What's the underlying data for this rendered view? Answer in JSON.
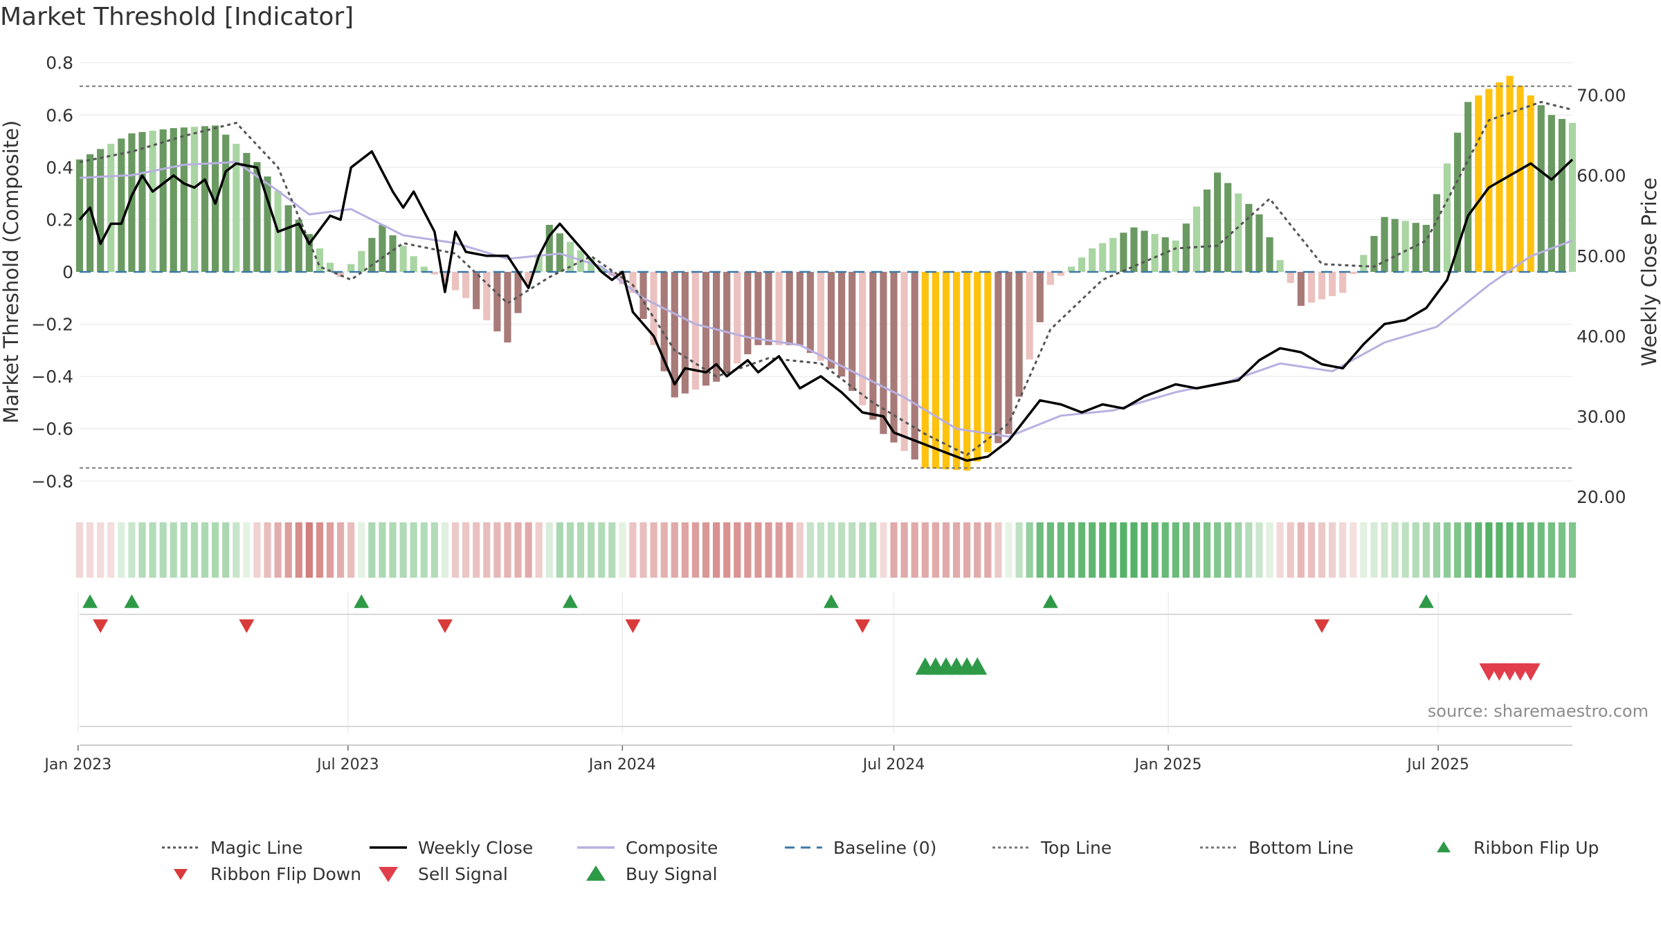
{
  "title": "Market Threshold [Indicator]",
  "source": "source: sharemaestro.com",
  "colors": {
    "bar_pos_strong": "#6a9a62",
    "bar_pos_weak": "#a9d5a2",
    "bar_neg_strong": "#a87a78",
    "bar_neg_weak": "#ebc2bf",
    "bar_extreme": "#ffc20e",
    "magic": "#555555",
    "close": "#000000",
    "composite": "#b8b0e0",
    "baseline": "#3a78a8",
    "threshold": "#777777",
    "up": "#2e9a48",
    "down": "#d93a3a"
  },
  "legend": [
    {
      "label": "Magic Line",
      "style": "dotted",
      "color": "#555555"
    },
    {
      "label": "Weekly Close",
      "style": "solid",
      "color": "#000000"
    },
    {
      "label": "Composite",
      "style": "solid",
      "color": "#b8b0e0"
    },
    {
      "label": "Baseline (0)",
      "style": "dashed",
      "color": "#3a78a8"
    },
    {
      "label": "Top Line",
      "style": "dotted",
      "color": "#777777"
    },
    {
      "label": "Bottom Line",
      "style": "dotted",
      "color": "#777777"
    },
    {
      "label": "Ribbon Flip Up",
      "style": "tri-up",
      "color": "#2e9a48"
    },
    {
      "label": "Ribbon Flip Down",
      "style": "tri-down",
      "color": "#d93a3a"
    },
    {
      "label": "Sell Signal",
      "style": "tri-down-big",
      "color": "#e23d4b"
    },
    {
      "label": "Buy Signal",
      "style": "tri-up-big",
      "color": "#2e9a48"
    }
  ],
  "chart_data": {
    "type": "bar",
    "xlabel": "",
    "ylabel": "Market Threshold (Composite)",
    "y2label": "Weekly Close Price",
    "x_start": "2023-01-02",
    "x_end": "2025-09-29",
    "x_ticks": [
      {
        "date": "2023-01-01",
        "label": "Jan 2023"
      },
      {
        "date": "2023-07-01",
        "label": "Jul 2023"
      },
      {
        "date": "2024-01-01",
        "label": "Jan 2024"
      },
      {
        "date": "2024-07-01",
        "label": "Jul 2024"
      },
      {
        "date": "2025-01-01",
        "label": "Jan 2025"
      },
      {
        "date": "2025-07-01",
        "label": "Jul 2025"
      }
    ],
    "y_ticks": [
      {
        "value": 0.8,
        "label": "0.8"
      },
      {
        "value": 0.6,
        "label": "0.6"
      },
      {
        "value": 0.4,
        "label": "0.4"
      },
      {
        "value": 0.2,
        "label": "0.2"
      },
      {
        "value": 0,
        "label": "0"
      },
      {
        "value": -0.2,
        "label": "−0.2"
      },
      {
        "value": -0.4,
        "label": "−0.4"
      },
      {
        "value": -0.6,
        "label": "−0.6"
      },
      {
        "value": -0.8,
        "label": "−0.8"
      }
    ],
    "y2_ticks": [
      {
        "value": 70,
        "label": "70.00"
      },
      {
        "value": 60,
        "label": "60.00"
      },
      {
        "value": 50,
        "label": "50.00"
      },
      {
        "value": 40,
        "label": "40.00"
      },
      {
        "value": 30,
        "label": "30.00"
      },
      {
        "value": 20,
        "label": "20.00"
      }
    ],
    "ylim": [
      -0.86,
      0.86
    ],
    "y2lim": [
      20,
      76
    ],
    "top_line": 0.71,
    "bottom_line": -0.75,
    "baseline": 0,
    "composite_anchors": [
      [
        "2023-01-02",
        0.43
      ],
      [
        "2023-02-06",
        0.53
      ],
      [
        "2023-03-06",
        0.55
      ],
      [
        "2023-04-03",
        0.56
      ],
      [
        "2023-05-01",
        0.42
      ],
      [
        "2023-05-29",
        0.2
      ],
      [
        "2023-06-26",
        -0.02
      ],
      [
        "2023-07-24",
        0.18
      ],
      [
        "2023-08-21",
        0.02
      ],
      [
        "2023-09-18",
        -0.1
      ],
      [
        "2023-10-16",
        -0.27
      ],
      [
        "2023-11-13",
        0.18
      ],
      [
        "2023-12-11",
        0.05
      ],
      [
        "2024-01-08",
        -0.08
      ],
      [
        "2024-02-05",
        -0.48
      ],
      [
        "2024-03-04",
        -0.42
      ],
      [
        "2024-04-01",
        -0.28
      ],
      [
        "2024-04-29",
        -0.28
      ],
      [
        "2024-05-27",
        -0.4
      ],
      [
        "2024-06-24",
        -0.62
      ],
      [
        "2024-07-22",
        -0.75
      ],
      [
        "2024-08-19",
        -0.76
      ],
      [
        "2024-09-16",
        -0.62
      ],
      [
        "2024-10-14",
        -0.05
      ],
      [
        "2024-11-11",
        0.09
      ],
      [
        "2024-12-09",
        0.17
      ],
      [
        "2025-01-06",
        0.12
      ],
      [
        "2025-02-03",
        0.38
      ],
      [
        "2025-03-03",
        0.22
      ],
      [
        "2025-03-31",
        -0.13
      ],
      [
        "2025-04-28",
        -0.08
      ],
      [
        "2025-05-26",
        0.21
      ],
      [
        "2025-06-23",
        0.18
      ],
      [
        "2025-07-21",
        0.65
      ],
      [
        "2025-08-18",
        0.75
      ],
      [
        "2025-09-15",
        0.6
      ],
      [
        "2025-09-29",
        0.57
      ]
    ],
    "weekly_close": [
      [
        "2023-01-02",
        54.5
      ],
      [
        "2023-01-09",
        56.0
      ],
      [
        "2023-01-16",
        51.5
      ],
      [
        "2023-01-23",
        54.0
      ],
      [
        "2023-01-30",
        54.0
      ],
      [
        "2023-02-06",
        57.5
      ],
      [
        "2023-02-13",
        60.0
      ],
      [
        "2023-02-20",
        58.0
      ],
      [
        "2023-02-27",
        59.0
      ],
      [
        "2023-03-06",
        60.0
      ],
      [
        "2023-03-13",
        59.0
      ],
      [
        "2023-03-20",
        58.5
      ],
      [
        "2023-03-27",
        59.5
      ],
      [
        "2023-04-03",
        56.5
      ],
      [
        "2023-04-10",
        60.5
      ],
      [
        "2023-04-17",
        61.5
      ],
      [
        "2023-05-01",
        61.0
      ],
      [
        "2023-05-15",
        53.0
      ],
      [
        "2023-05-29",
        54.0
      ],
      [
        "2023-06-05",
        51.5
      ],
      [
        "2023-06-19",
        55.0
      ],
      [
        "2023-06-26",
        54.5
      ],
      [
        "2023-07-03",
        61.0
      ],
      [
        "2023-07-17",
        63.0
      ],
      [
        "2023-07-31",
        58.0
      ],
      [
        "2023-08-07",
        56.0
      ],
      [
        "2023-08-14",
        58.0
      ],
      [
        "2023-08-28",
        53.0
      ],
      [
        "2023-09-04",
        45.5
      ],
      [
        "2023-09-11",
        53.0
      ],
      [
        "2023-09-18",
        50.5
      ],
      [
        "2023-10-02",
        50.0
      ],
      [
        "2023-10-16",
        50.0
      ],
      [
        "2023-10-30",
        46.0
      ],
      [
        "2023-11-06",
        50.0
      ],
      [
        "2023-11-13",
        52.5
      ],
      [
        "2023-11-20",
        54.0
      ],
      [
        "2023-11-27",
        52.5
      ],
      [
        "2023-12-04",
        51.0
      ],
      [
        "2023-12-18",
        48.0
      ],
      [
        "2023-12-25",
        47.0
      ],
      [
        "2024-01-01",
        48.0
      ],
      [
        "2024-01-08",
        43.0
      ],
      [
        "2024-01-22",
        40.0
      ],
      [
        "2024-02-05",
        34.0
      ],
      [
        "2024-02-12",
        36.0
      ],
      [
        "2024-02-26",
        35.5
      ],
      [
        "2024-03-04",
        36.5
      ],
      [
        "2024-03-11",
        35.0
      ],
      [
        "2024-03-25",
        37.0
      ],
      [
        "2024-04-01",
        35.5
      ],
      [
        "2024-04-15",
        37.5
      ],
      [
        "2024-04-29",
        33.5
      ],
      [
        "2024-05-13",
        35.0
      ],
      [
        "2024-05-27",
        33.0
      ],
      [
        "2024-06-10",
        30.5
      ],
      [
        "2024-06-24",
        30.0
      ],
      [
        "2024-07-01",
        28.0
      ],
      [
        "2024-07-15",
        27.0
      ],
      [
        "2024-08-05",
        25.5
      ],
      [
        "2024-08-19",
        24.5
      ],
      [
        "2024-09-02",
        25.0
      ],
      [
        "2024-09-16",
        27.0
      ],
      [
        "2024-10-07",
        32.0
      ],
      [
        "2024-10-21",
        31.5
      ],
      [
        "2024-11-04",
        30.5
      ],
      [
        "2024-11-18",
        31.5
      ],
      [
        "2024-12-02",
        31.0
      ],
      [
        "2024-12-16",
        32.5
      ],
      [
        "2025-01-06",
        34.0
      ],
      [
        "2025-01-20",
        33.5
      ],
      [
        "2025-02-03",
        34.0
      ],
      [
        "2025-02-17",
        34.5
      ],
      [
        "2025-03-03",
        37.0
      ],
      [
        "2025-03-17",
        38.5
      ],
      [
        "2025-03-31",
        38.0
      ],
      [
        "2025-04-14",
        36.5
      ],
      [
        "2025-04-28",
        36.0
      ],
      [
        "2025-05-12",
        39.0
      ],
      [
        "2025-05-26",
        41.5
      ],
      [
        "2025-06-09",
        42.0
      ],
      [
        "2025-06-23",
        43.5
      ],
      [
        "2025-07-07",
        47.0
      ],
      [
        "2025-07-21",
        55.0
      ],
      [
        "2025-08-04",
        58.5
      ],
      [
        "2025-08-18",
        60.0
      ],
      [
        "2025-09-01",
        61.5
      ],
      [
        "2025-09-15",
        59.5
      ],
      [
        "2025-09-29",
        62.0
      ]
    ],
    "magic_line": [
      [
        "2023-01-02",
        0.42
      ],
      [
        "2023-02-06",
        0.46
      ],
      [
        "2023-03-13",
        0.52
      ],
      [
        "2023-04-17",
        0.57
      ],
      [
        "2023-05-15",
        0.4
      ],
      [
        "2023-06-12",
        0.02
      ],
      [
        "2023-07-03",
        -0.03
      ],
      [
        "2023-08-07",
        0.11
      ],
      [
        "2023-09-11",
        0.07
      ],
      [
        "2023-10-16",
        -0.12
      ],
      [
        "2023-11-13",
        -0.02
      ],
      [
        "2023-12-11",
        0.06
      ],
      [
        "2024-01-08",
        -0.05
      ],
      [
        "2024-02-05",
        -0.3
      ],
      [
        "2024-03-04",
        -0.4
      ],
      [
        "2024-04-08",
        -0.33
      ],
      [
        "2024-05-13",
        -0.35
      ],
      [
        "2024-06-17",
        -0.5
      ],
      [
        "2024-07-22",
        -0.62
      ],
      [
        "2024-08-19",
        -0.7
      ],
      [
        "2024-09-16",
        -0.58
      ],
      [
        "2024-10-14",
        -0.22
      ],
      [
        "2024-11-18",
        -0.03
      ],
      [
        "2025-01-06",
        0.09
      ],
      [
        "2025-02-03",
        0.1
      ],
      [
        "2025-03-10",
        0.28
      ],
      [
        "2025-04-14",
        0.03
      ],
      [
        "2025-05-19",
        0.02
      ],
      [
        "2025-06-23",
        0.12
      ],
      [
        "2025-08-04",
        0.58
      ],
      [
        "2025-09-08",
        0.65
      ],
      [
        "2025-09-29",
        0.62
      ]
    ],
    "composite_line": [
      [
        "2023-01-02",
        0.36
      ],
      [
        "2023-02-06",
        0.37
      ],
      [
        "2023-03-13",
        0.41
      ],
      [
        "2023-04-17",
        0.42
      ],
      [
        "2023-05-15",
        0.31
      ],
      [
        "2023-06-05",
        0.22
      ],
      [
        "2023-07-03",
        0.24
      ],
      [
        "2023-08-07",
        0.14
      ],
      [
        "2023-09-11",
        0.11
      ],
      [
        "2023-10-16",
        0.05
      ],
      [
        "2023-11-20",
        0.07
      ],
      [
        "2023-12-18",
        0.02
      ],
      [
        "2024-01-15",
        -0.1
      ],
      [
        "2024-02-19",
        -0.2
      ],
      [
        "2024-03-25",
        -0.25
      ],
      [
        "2024-04-29",
        -0.28
      ],
      [
        "2024-06-03",
        -0.38
      ],
      [
        "2024-07-08",
        -0.48
      ],
      [
        "2024-08-12",
        -0.6
      ],
      [
        "2024-09-16",
        -0.63
      ],
      [
        "2024-10-21",
        -0.55
      ],
      [
        "2024-11-25",
        -0.53
      ],
      [
        "2025-01-06",
        -0.46
      ],
      [
        "2025-02-10",
        -0.42
      ],
      [
        "2025-03-17",
        -0.35
      ],
      [
        "2025-04-21",
        -0.38
      ],
      [
        "2025-05-26",
        -0.27
      ],
      [
        "2025-06-30",
        -0.21
      ],
      [
        "2025-08-04",
        -0.05
      ],
      [
        "2025-09-01",
        0.06
      ],
      [
        "2025-09-29",
        0.12
      ]
    ],
    "extreme_periods": [
      [
        "2024-07-22",
        "2024-09-02"
      ],
      [
        "2025-07-28",
        "2025-09-01"
      ]
    ],
    "ribbon_anchors": [
      [
        "2023-01-02",
        -0.1
      ],
      [
        "2023-01-23",
        -0.05
      ],
      [
        "2023-02-13",
        0.3
      ],
      [
        "2023-04-10",
        0.35
      ],
      [
        "2023-05-08",
        -0.3
      ],
      [
        "2023-06-05",
        -0.8
      ],
      [
        "2023-07-03",
        -0.3
      ],
      [
        "2023-07-17",
        0.35
      ],
      [
        "2023-08-28",
        0.3
      ],
      [
        "2023-09-11",
        -0.2
      ],
      [
        "2023-10-30",
        -0.45
      ],
      [
        "2023-11-20",
        0.35
      ],
      [
        "2023-12-25",
        0.3
      ],
      [
        "2024-01-08",
        -0.25
      ],
      [
        "2024-03-04",
        -0.65
      ],
      [
        "2024-04-22",
        -0.55
      ],
      [
        "2024-05-06",
        0.2
      ],
      [
        "2024-06-17",
        0.3
      ],
      [
        "2024-07-01",
        -0.45
      ],
      [
        "2024-09-02",
        -0.45
      ],
      [
        "2024-10-07",
        0.7
      ],
      [
        "2024-12-09",
        0.85
      ],
      [
        "2025-02-10",
        0.55
      ],
      [
        "2025-03-31",
        -0.35
      ],
      [
        "2025-05-19",
        0.1
      ],
      [
        "2025-06-23",
        0.35
      ],
      [
        "2025-08-04",
        0.85
      ],
      [
        "2025-09-29",
        0.6
      ]
    ],
    "ribbon_flip_up": [
      "2023-01-09",
      "2023-02-06",
      "2023-07-10",
      "2023-11-27",
      "2024-05-20",
      "2024-10-14",
      "2025-06-23"
    ],
    "ribbon_flip_down": [
      "2023-01-16",
      "2023-04-24",
      "2023-09-04",
      "2024-01-08",
      "2024-06-10",
      "2025-04-14"
    ],
    "buy_signals": [
      "2024-07-22",
      "2024-07-29",
      "2024-08-05",
      "2024-08-12",
      "2024-08-19",
      "2024-08-26"
    ],
    "sell_signals": [
      "2025-08-04",
      "2025-08-11",
      "2025-08-18",
      "2025-08-25",
      "2025-09-01"
    ]
  }
}
